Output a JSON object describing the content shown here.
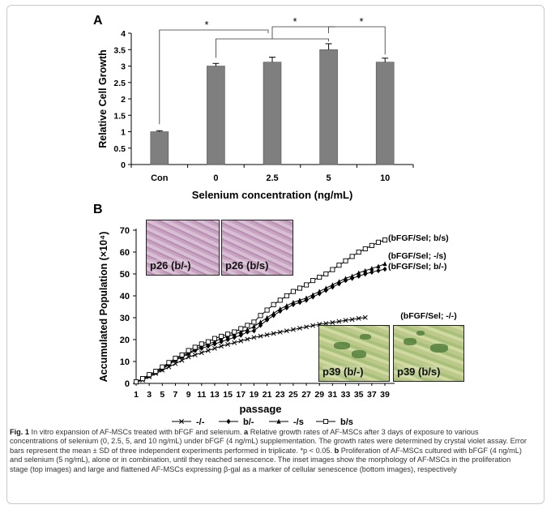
{
  "colors": {
    "bar": "#7f7f7f",
    "line": "#000000",
    "inset_proliferation": "#c9a3c2",
    "inset_senescence": "#b7c487"
  },
  "chart_data": [
    {
      "type": "bar",
      "panel_label": "A",
      "categories": [
        "Con",
        "0",
        "2.5",
        "5",
        "10"
      ],
      "values": [
        1.0,
        3.0,
        3.12,
        3.5,
        3.12
      ],
      "errors": [
        0.03,
        0.08,
        0.15,
        0.18,
        0.12
      ],
      "ylabel": "Relative Cell Growth",
      "xlabel": "Selenium concentration (ng/mL)",
      "yticks": [
        "0",
        "0.5",
        "1",
        "1.5",
        "2",
        "2.5",
        "3",
        "3.5",
        "4"
      ],
      "ylim": [
        0,
        4
      ],
      "significance_marker": "*"
    },
    {
      "type": "line",
      "panel_label": "B",
      "ylabel": "Accumulated  Population (×10⁴)",
      "xlabel": "passage",
      "xticks": [
        "1",
        "3",
        "5",
        "7",
        "9",
        "11",
        "13",
        "15",
        "17",
        "19",
        "21",
        "23",
        "25",
        "27",
        "29",
        "31",
        "33",
        "35",
        "37",
        "39"
      ],
      "yticks": [
        "0",
        "10",
        "20",
        "30",
        "40",
        "50",
        "60",
        "70"
      ],
      "ylim": [
        0,
        70
      ],
      "xlim": [
        1,
        39
      ],
      "series": [
        {
          "name": "-/-",
          "marker": "x",
          "end_label": "(bFGF/Sel; -/-)",
          "x": [
            1,
            2,
            3,
            4,
            5,
            6,
            7,
            8,
            9,
            10,
            11,
            12,
            13,
            14,
            15,
            16,
            17,
            18,
            19,
            20,
            21,
            22,
            23,
            24,
            25,
            26,
            27,
            28,
            29,
            30,
            31,
            32,
            33,
            34,
            35,
            36
          ],
          "y": [
            0.5,
            1.5,
            3,
            4.5,
            6,
            7.5,
            9,
            10.5,
            12,
            13,
            14,
            15,
            16,
            17,
            17.8,
            18.6,
            19.4,
            20.2,
            21,
            21.6,
            22.2,
            22.8,
            23.4,
            24,
            24.6,
            25.2,
            25.8,
            26.4,
            27,
            27.4,
            27.8,
            28.3,
            28.8,
            29.2,
            29.7,
            30.1
          ]
        },
        {
          "name": "b/-",
          "marker": "diamond",
          "end_label": "(bFGF/Sel; b/-)",
          "x": [
            1,
            2,
            3,
            4,
            5,
            6,
            7,
            8,
            9,
            10,
            11,
            12,
            13,
            14,
            15,
            16,
            17,
            18,
            19,
            20,
            21,
            22,
            23,
            24,
            25,
            26,
            27,
            28,
            29,
            30,
            31,
            32,
            33,
            34,
            35,
            36,
            37,
            38,
            39
          ],
          "y": [
            0.6,
            2,
            3.5,
            5,
            6.5,
            8.5,
            10.5,
            12,
            13.5,
            15,
            16,
            17,
            18,
            19,
            20,
            21,
            22,
            23.5,
            24,
            26.5,
            29,
            31,
            33,
            34.5,
            36,
            37,
            38,
            39.5,
            41,
            42.5,
            44,
            45.5,
            47,
            48,
            49,
            50,
            50.8,
            51.5,
            52.2
          ]
        },
        {
          "name": "-/s",
          "marker": "triangle",
          "end_label": "(bFGF/Sel; -/s)",
          "x": [
            1,
            2,
            3,
            4,
            5,
            6,
            7,
            8,
            9,
            10,
            11,
            12,
            13,
            14,
            15,
            16,
            17,
            18,
            19,
            20,
            21,
            22,
            23,
            24,
            25,
            26,
            27,
            28,
            29,
            30,
            31,
            32,
            33,
            34,
            35,
            36,
            37,
            38,
            39
          ],
          "y": [
            0.6,
            2,
            3.5,
            5,
            7,
            9,
            11,
            12.5,
            14,
            15.5,
            17,
            18,
            19,
            20.5,
            21.5,
            22.5,
            23.5,
            24.5,
            26,
            28,
            30,
            32,
            34,
            35.5,
            37,
            38,
            39,
            40.5,
            42,
            43.5,
            45,
            46.5,
            48,
            49,
            50.5,
            51.5,
            52.5,
            53.5,
            54.6
          ]
        },
        {
          "name": "b/s",
          "marker": "square",
          "end_label": "(bFGF/Sel; b/s)",
          "x": [
            1,
            2,
            3,
            4,
            5,
            6,
            7,
            8,
            9,
            10,
            11,
            12,
            13,
            14,
            15,
            16,
            17,
            18,
            19,
            20,
            21,
            22,
            23,
            24,
            25,
            26,
            27,
            28,
            29,
            30,
            31,
            32,
            33,
            34,
            35,
            36,
            37,
            38,
            39
          ],
          "y": [
            0.7,
            2.2,
            4,
            5.5,
            7.5,
            9.5,
            11.5,
            13,
            15,
            16.5,
            18,
            19,
            20.5,
            21.5,
            22.5,
            23.5,
            25,
            26.5,
            28,
            31,
            33.5,
            36,
            38,
            40,
            42,
            43.5,
            45,
            47,
            48.5,
            50,
            52,
            54,
            56,
            58,
            60,
            61.5,
            63,
            64.5,
            65.5
          ]
        }
      ],
      "insets": [
        {
          "label": "p26 (b/-)",
          "kind": "proliferation"
        },
        {
          "label": "p26 (b/s)",
          "kind": "proliferation"
        },
        {
          "label": "p39 (b/-)",
          "kind": "senescence"
        },
        {
          "label": "p39 (b/s)",
          "kind": "senescence"
        }
      ]
    }
  ],
  "caption": {
    "fig": "Fig. 1",
    "intro": " In vitro expansion of AF-MSCs treated with bFGF and selenium. ",
    "a": "a",
    "a_text": " Relative growth rates of AF-MSCs after 3 days of exposure to various concentrations of selenium (0, 2.5, 5, and 10 ng/mL) under bFGF (4 ng/mL) supplementation. The growth rates were determined by crystal violet assay. Error bars represent the mean ± SD of three independent experiments performed in triplicate. *p < 0.05. ",
    "b": "b",
    "b_text": " Proliferation of AF-MSCs cultured with bFGF (4 ng/mL) and selenium (5 ng/mL), alone or in combination, until they reached senescence. The inset images show the morphology of AF-MSCs in the proliferation stage (top images) and large and flattened AF-MSCs expressing β-gal as a marker of cellular senescence (bottom images), respectively"
  }
}
